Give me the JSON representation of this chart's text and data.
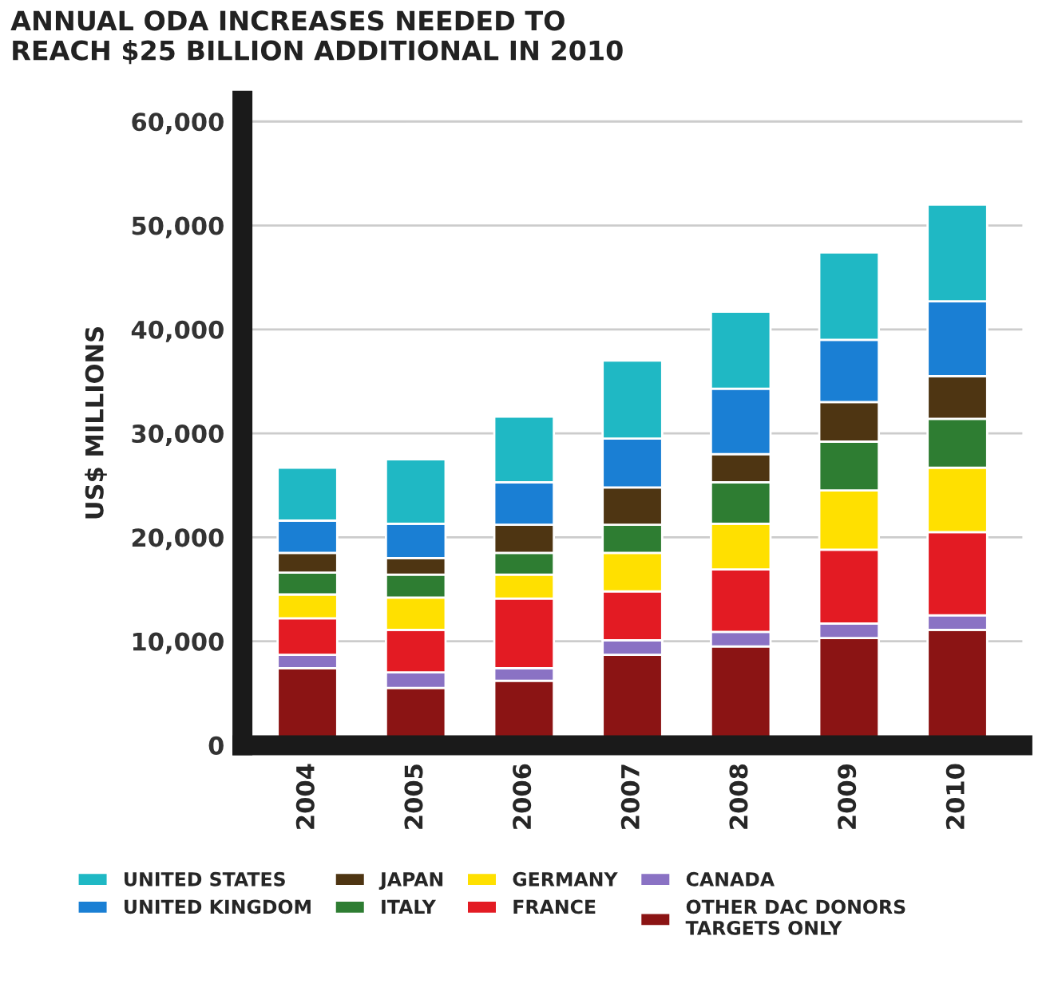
{
  "chart_data": {
    "type": "bar",
    "title": "ANNUAL ODA INCREASES NEEDED TO\nREACH $25 BILLION ADDITIONAL IN 2010",
    "ylabel": "US$ MILLIONS",
    "categories": [
      "2004",
      "2005",
      "2006",
      "2007",
      "2008",
      "2009",
      "2010"
    ],
    "stacked": true,
    "series": [
      {
        "name": "OTHER DAC DONORS\nTARGETS ONLY",
        "color": "#8b1414",
        "values": [
          7400,
          5500,
          6200,
          8700,
          9500,
          10300,
          11100
        ]
      },
      {
        "name": "CANADA",
        "color": "#8a72c4",
        "values": [
          1300,
          1500,
          1200,
          1400,
          1400,
          1400,
          1400
        ]
      },
      {
        "name": "FRANCE",
        "color": "#e31b23",
        "values": [
          3500,
          4100,
          6700,
          4700,
          6000,
          7100,
          8000
        ]
      },
      {
        "name": "GERMANY",
        "color": "#ffe000",
        "values": [
          2300,
          3100,
          2300,
          3700,
          4400,
          5700,
          6200
        ]
      },
      {
        "name": "ITALY",
        "color": "#2e7d32",
        "values": [
          2100,
          2200,
          2100,
          2700,
          4000,
          4700,
          4700
        ]
      },
      {
        "name": "JAPAN",
        "color": "#4e3512",
        "values": [
          1900,
          1600,
          2700,
          3600,
          2700,
          3800,
          4100
        ]
      },
      {
        "name": "UNITED KINGDOM",
        "color": "#1a7fd4",
        "values": [
          3100,
          3300,
          4100,
          4700,
          6300,
          6000,
          7200
        ]
      },
      {
        "name": "UNITED STATES",
        "color": "#1fb8c4",
        "values": [
          5100,
          6200,
          6300,
          7500,
          7400,
          8400,
          9300
        ]
      }
    ],
    "ylim": [
      0,
      62000
    ],
    "yticks": [
      {
        "value": 0,
        "label": "0"
      },
      {
        "value": 10000,
        "label": "10,000"
      },
      {
        "value": 20000,
        "label": "20,000"
      },
      {
        "value": 30000,
        "label": "30,000"
      },
      {
        "value": 40000,
        "label": "40,000"
      },
      {
        "value": 50000,
        "label": "50,000"
      },
      {
        "value": 60000,
        "label": "60,000"
      }
    ],
    "grid": "y",
    "legend": "bottom"
  }
}
